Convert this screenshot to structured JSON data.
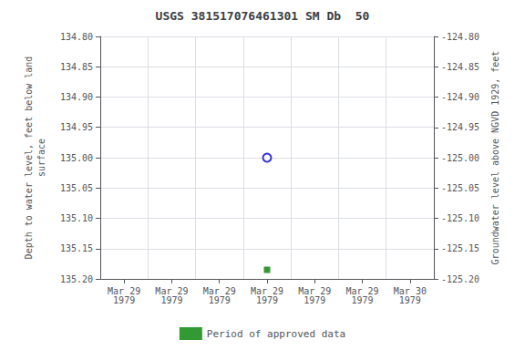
{
  "chart_data": {
    "type": "scatter",
    "title": "USGS 381517076461301 SM Db  50",
    "categories": [
      "Mar 29\n1979",
      "Mar 29\n1979",
      "Mar 29\n1979",
      "Mar 29\n1979",
      "Mar 29\n1979",
      "Mar 29\n1979",
      "Mar 30\n1979"
    ],
    "series": [
      {
        "color": "#0000cc",
        "marker": "open_circle",
        "values": [
          null,
          null,
          null,
          135.0,
          null,
          null,
          null
        ]
      },
      {
        "name": "Period of approved data",
        "color": "#008000",
        "marker": "square",
        "values": [
          null,
          null,
          null,
          135.185,
          null,
          null,
          null
        ]
      }
    ],
    "y_label": "Depth to water level, feet below land\nsurface",
    "y2_label": "Groundwater level above NGVD 1929, feet",
    "ylim": [
      135.2,
      134.8
    ],
    "yticks": [
      {
        "value": 134.8,
        "label": "134.80"
      },
      {
        "value": 134.85,
        "label": "134.85"
      },
      {
        "value": 134.9,
        "label": "134.90"
      },
      {
        "value": 134.95,
        "label": "134.95"
      },
      {
        "value": 135.0,
        "label": "135.00"
      },
      {
        "value": 135.05,
        "label": "135.05"
      },
      {
        "value": 135.1,
        "label": "135.10"
      },
      {
        "value": 135.15,
        "label": "135.15"
      },
      {
        "value": 135.2,
        "label": "135.20"
      }
    ],
    "y2lim": [
      -125.2,
      -124.8
    ],
    "y2ticks": [
      {
        "value": -124.8,
        "label": "-124.80"
      },
      {
        "value": -124.85,
        "label": "-124.85"
      },
      {
        "value": -124.9,
        "label": "-124.90"
      },
      {
        "value": -124.95,
        "label": "-124.95"
      },
      {
        "value": -125.0,
        "label": "-125.00"
      },
      {
        "value": -125.05,
        "label": "-125.05"
      },
      {
        "value": -125.1,
        "label": "-125.10"
      },
      {
        "value": -125.15,
        "label": "-125.15"
      },
      {
        "value": -125.2,
        "label": "-125.20"
      }
    ],
    "grid": true,
    "legend": "bottom"
  }
}
